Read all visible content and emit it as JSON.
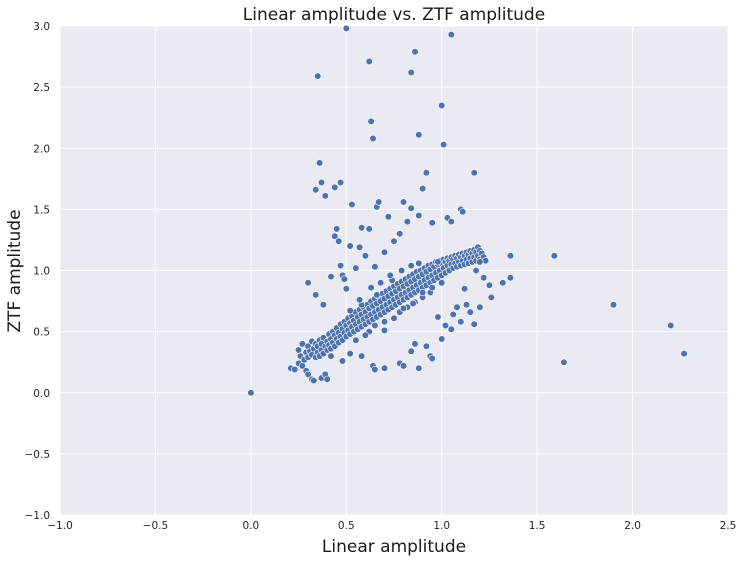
{
  "colors": {
    "plot_background": "#eaeaf2",
    "grid": "#ffffff",
    "marker": "#4c72b0",
    "marker_edge": "#ffffff"
  },
  "chart_data": {
    "type": "scatter",
    "title": "Linear amplitude vs. ZTF amplitude",
    "xlabel": "Linear amplitude",
    "ylabel": "ZTF amplitude",
    "xlim": [
      -1.0,
      2.5
    ],
    "ylim": [
      -1.0,
      3.0
    ],
    "xticks": [
      "−1.0",
      "−0.5",
      "0.0",
      "0.5",
      "1.0",
      "1.5",
      "2.0",
      "2.5"
    ],
    "yticks": [
      "−1.0",
      "−0.5",
      "0.0",
      "0.5",
      "1.0",
      "1.5",
      "2.0",
      "2.5",
      "3.0"
    ],
    "grid": true,
    "legend": "none",
    "series": [
      {
        "points": [
          [
            0.0,
            0.0
          ],
          [
            0.21,
            0.2
          ],
          [
            0.23,
            0.19
          ],
          [
            0.25,
            0.24
          ],
          [
            0.27,
            0.22
          ],
          [
            0.29,
            0.18
          ],
          [
            0.3,
            0.15
          ],
          [
            0.32,
            0.11
          ],
          [
            0.33,
            0.1
          ],
          [
            0.37,
            0.12
          ],
          [
            0.39,
            0.15
          ],
          [
            0.4,
            0.11
          ],
          [
            0.25,
            0.35
          ],
          [
            0.26,
            0.3
          ],
          [
            0.27,
            0.4
          ],
          [
            0.28,
            0.27
          ],
          [
            0.29,
            0.33
          ],
          [
            0.3,
            0.38
          ],
          [
            0.3,
            0.29
          ],
          [
            0.31,
            0.34
          ],
          [
            0.32,
            0.42
          ],
          [
            0.32,
            0.31
          ],
          [
            0.33,
            0.36
          ],
          [
            0.34,
            0.29
          ],
          [
            0.34,
            0.4
          ],
          [
            0.35,
            0.33
          ],
          [
            0.35,
            0.38
          ],
          [
            0.36,
            0.3
          ],
          [
            0.36,
            0.43
          ],
          [
            0.37,
            0.35
          ],
          [
            0.37,
            0.4
          ],
          [
            0.38,
            0.32
          ],
          [
            0.38,
            0.45
          ],
          [
            0.39,
            0.38
          ],
          [
            0.4,
            0.42
          ],
          [
            0.4,
            0.35
          ],
          [
            0.41,
            0.48
          ],
          [
            0.41,
            0.39
          ],
          [
            0.42,
            0.44
          ],
          [
            0.42,
            0.36
          ],
          [
            0.43,
            0.5
          ],
          [
            0.43,
            0.41
          ],
          [
            0.44,
            0.47
          ],
          [
            0.44,
            0.38
          ],
          [
            0.45,
            0.53
          ],
          [
            0.45,
            0.44
          ],
          [
            0.46,
            0.49
          ],
          [
            0.46,
            0.41
          ],
          [
            0.47,
            0.56
          ],
          [
            0.47,
            0.46
          ],
          [
            0.48,
            0.52
          ],
          [
            0.48,
            0.43
          ],
          [
            0.49,
            0.58
          ],
          [
            0.49,
            0.49
          ],
          [
            0.5,
            0.55
          ],
          [
            0.5,
            0.46
          ],
          [
            0.51,
            0.61
          ],
          [
            0.51,
            0.51
          ],
          [
            0.52,
            0.57
          ],
          [
            0.52,
            0.48
          ],
          [
            0.53,
            0.63
          ],
          [
            0.53,
            0.54
          ],
          [
            0.54,
            0.59
          ],
          [
            0.54,
            0.5
          ],
          [
            0.55,
            0.66
          ],
          [
            0.55,
            0.56
          ],
          [
            0.56,
            0.62
          ],
          [
            0.56,
            0.52
          ],
          [
            0.57,
            0.68
          ],
          [
            0.57,
            0.58
          ],
          [
            0.58,
            0.64
          ],
          [
            0.58,
            0.54
          ],
          [
            0.59,
            0.7
          ],
          [
            0.59,
            0.6
          ],
          [
            0.6,
            0.66
          ],
          [
            0.6,
            0.56
          ],
          [
            0.61,
            0.72
          ],
          [
            0.61,
            0.62
          ],
          [
            0.62,
            0.69
          ],
          [
            0.62,
            0.58
          ],
          [
            0.63,
            0.75
          ],
          [
            0.63,
            0.64
          ],
          [
            0.64,
            0.71
          ],
          [
            0.64,
            0.6
          ],
          [
            0.65,
            0.77
          ],
          [
            0.65,
            0.66
          ],
          [
            0.66,
            0.73
          ],
          [
            0.66,
            0.62
          ],
          [
            0.67,
            0.79
          ],
          [
            0.67,
            0.68
          ],
          [
            0.68,
            0.75
          ],
          [
            0.68,
            0.64
          ],
          [
            0.69,
            0.81
          ],
          [
            0.69,
            0.7
          ],
          [
            0.7,
            0.77
          ],
          [
            0.7,
            0.66
          ],
          [
            0.71,
            0.83
          ],
          [
            0.71,
            0.72
          ],
          [
            0.72,
            0.79
          ],
          [
            0.72,
            0.68
          ],
          [
            0.73,
            0.85
          ],
          [
            0.73,
            0.74
          ],
          [
            0.74,
            0.81
          ],
          [
            0.74,
            0.7
          ],
          [
            0.75,
            0.87
          ],
          [
            0.75,
            0.76
          ],
          [
            0.76,
            0.83
          ],
          [
            0.76,
            0.72
          ],
          [
            0.77,
            0.89
          ],
          [
            0.77,
            0.78
          ],
          [
            0.78,
            0.85
          ],
          [
            0.78,
            0.74
          ],
          [
            0.79,
            0.91
          ],
          [
            0.79,
            0.8
          ],
          [
            0.8,
            0.87
          ],
          [
            0.8,
            0.76
          ],
          [
            0.81,
            0.93
          ],
          [
            0.81,
            0.82
          ],
          [
            0.82,
            0.89
          ],
          [
            0.82,
            0.78
          ],
          [
            0.83,
            0.95
          ],
          [
            0.83,
            0.84
          ],
          [
            0.84,
            0.91
          ],
          [
            0.84,
            0.8
          ],
          [
            0.85,
            0.97
          ],
          [
            0.85,
            0.86
          ],
          [
            0.86,
            0.93
          ],
          [
            0.86,
            0.82
          ],
          [
            0.87,
            0.99
          ],
          [
            0.87,
            0.88
          ],
          [
            0.88,
            0.95
          ],
          [
            0.88,
            0.84
          ],
          [
            0.89,
            1.0
          ],
          [
            0.89,
            0.9
          ],
          [
            0.9,
            0.97
          ],
          [
            0.9,
            0.86
          ],
          [
            0.91,
            1.02
          ],
          [
            0.91,
            0.92
          ],
          [
            0.92,
            0.99
          ],
          [
            0.92,
            0.88
          ],
          [
            0.93,
            1.04
          ],
          [
            0.93,
            0.94
          ],
          [
            0.94,
            1.01
          ],
          [
            0.94,
            0.9
          ],
          [
            0.95,
            1.05
          ],
          [
            0.95,
            0.96
          ],
          [
            0.96,
            1.03
          ],
          [
            0.96,
            0.92
          ],
          [
            0.97,
            1.07
          ],
          [
            0.97,
            0.98
          ],
          [
            0.98,
            1.05
          ],
          [
            0.98,
            0.94
          ],
          [
            0.99,
            1.08
          ],
          [
            0.99,
            1.0
          ],
          [
            1.0,
            1.06
          ],
          [
            1.0,
            0.96
          ],
          [
            1.01,
            1.09
          ],
          [
            1.01,
            1.02
          ],
          [
            1.02,
            1.07
          ],
          [
            1.02,
            0.98
          ],
          [
            1.03,
            1.1
          ],
          [
            1.03,
            1.04
          ],
          [
            1.04,
            1.08
          ],
          [
            1.04,
            1.0
          ],
          [
            1.05,
            1.11
          ],
          [
            1.05,
            1.05
          ],
          [
            1.06,
            1.09
          ],
          [
            1.06,
            1.02
          ],
          [
            1.07,
            1.12
          ],
          [
            1.07,
            1.06
          ],
          [
            1.08,
            1.1
          ],
          [
            1.08,
            1.03
          ],
          [
            1.09,
            1.13
          ],
          [
            1.09,
            1.07
          ],
          [
            1.1,
            1.11
          ],
          [
            1.1,
            1.04
          ],
          [
            1.11,
            1.14
          ],
          [
            1.11,
            1.08
          ],
          [
            1.12,
            1.12
          ],
          [
            1.12,
            1.05
          ],
          [
            1.13,
            1.15
          ],
          [
            1.13,
            1.09
          ],
          [
            1.14,
            1.13
          ],
          [
            1.14,
            1.06
          ],
          [
            1.15,
            1.16
          ],
          [
            1.15,
            1.1
          ],
          [
            1.16,
            1.14
          ],
          [
            1.16,
            1.07
          ],
          [
            1.17,
            1.17
          ],
          [
            1.17,
            1.11
          ],
          [
            1.18,
            1.15
          ],
          [
            1.18,
            1.08
          ],
          [
            1.19,
            1.19
          ],
          [
            1.19,
            1.12
          ],
          [
            1.2,
            1.16
          ],
          [
            1.2,
            1.09
          ],
          [
            1.21,
            1.14
          ],
          [
            1.22,
            1.11
          ],
          [
            1.23,
            1.08
          ],
          [
            0.58,
            0.72
          ],
          [
            0.62,
            0.5
          ],
          [
            0.66,
            0.8
          ],
          [
            0.7,
            0.58
          ],
          [
            0.74,
            0.92
          ],
          [
            0.78,
            0.66
          ],
          [
            0.82,
            0.7
          ],
          [
            0.86,
            0.74
          ],
          [
            0.9,
            0.78
          ],
          [
            0.94,
            0.82
          ],
          [
            0.55,
            0.43
          ],
          [
            0.6,
            0.47
          ],
          [
            0.65,
            0.55
          ],
          [
            0.7,
            0.51
          ],
          [
            0.75,
            0.61
          ],
          [
            0.8,
            0.69
          ],
          [
            0.85,
            0.73
          ],
          [
            0.9,
            0.82
          ],
          [
            0.95,
            0.86
          ],
          [
            1.0,
            0.9
          ],
          [
            0.52,
            0.67
          ],
          [
            0.57,
            0.76
          ],
          [
            0.63,
            0.86
          ],
          [
            0.68,
            0.9
          ],
          [
            0.73,
            0.96
          ],
          [
            0.79,
            1.0
          ],
          [
            0.84,
            1.04
          ],
          [
            0.88,
            1.06
          ],
          [
            0.3,
            0.9
          ],
          [
            0.34,
            0.8
          ],
          [
            0.38,
            0.72
          ],
          [
            0.42,
            0.95
          ],
          [
            0.44,
            1.28
          ],
          [
            0.45,
            1.34
          ],
          [
            0.46,
            1.24
          ],
          [
            0.47,
            1.04
          ],
          [
            0.48,
            0.96
          ],
          [
            0.49,
            0.93
          ],
          [
            0.5,
            0.85
          ],
          [
            0.52,
            1.2
          ],
          [
            0.55,
            1.02
          ],
          [
            0.57,
            1.19
          ],
          [
            0.58,
            1.35
          ],
          [
            0.6,
            1.12
          ],
          [
            0.62,
            1.34
          ],
          [
            0.65,
            1.03
          ],
          [
            0.66,
            1.52
          ],
          [
            0.67,
            1.56
          ],
          [
            0.7,
            1.15
          ],
          [
            0.72,
            1.44
          ],
          [
            0.75,
            1.24
          ],
          [
            0.78,
            1.3
          ],
          [
            0.8,
            1.56
          ],
          [
            0.82,
            1.4
          ],
          [
            0.84,
            1.51
          ],
          [
            0.88,
            1.45
          ],
          [
            0.9,
            1.67
          ],
          [
            0.92,
            1.8
          ],
          [
            0.95,
            1.39
          ],
          [
            0.98,
            1.07
          ],
          [
            1.03,
            1.43
          ],
          [
            1.05,
            1.4
          ],
          [
            1.1,
            1.5
          ],
          [
            1.11,
            1.48
          ],
          [
            1.17,
            1.8
          ],
          [
            0.34,
            1.66
          ],
          [
            0.36,
            1.88
          ],
          [
            0.37,
            1.72
          ],
          [
            0.39,
            1.61
          ],
          [
            0.44,
            1.68
          ],
          [
            0.47,
            1.72
          ],
          [
            0.53,
            1.54
          ],
          [
            0.35,
            2.59
          ],
          [
            0.5,
            2.98
          ],
          [
            0.62,
            2.71
          ],
          [
            0.63,
            2.22
          ],
          [
            0.64,
            2.08
          ],
          [
            0.84,
            2.62
          ],
          [
            0.86,
            2.79
          ],
          [
            0.88,
            2.11
          ],
          [
            1.0,
            2.35
          ],
          [
            1.01,
            2.03
          ],
          [
            1.05,
            2.93
          ],
          [
            0.42,
            0.3
          ],
          [
            0.48,
            0.26
          ],
          [
            0.52,
            0.32
          ],
          [
            0.58,
            0.3
          ],
          [
            0.64,
            0.22
          ],
          [
            0.65,
            0.19
          ],
          [
            0.7,
            0.2
          ],
          [
            0.78,
            0.24
          ],
          [
            0.8,
            0.22
          ],
          [
            0.84,
            0.34
          ],
          [
            0.88,
            0.2
          ],
          [
            0.94,
            0.3
          ],
          [
            0.95,
            0.28
          ],
          [
            0.92,
            0.38
          ],
          [
            0.86,
            0.4
          ],
          [
            1.0,
            0.44
          ],
          [
            1.05,
            0.52
          ],
          [
            1.08,
            0.7
          ],
          [
            1.1,
            0.58
          ],
          [
            1.13,
            0.72
          ],
          [
            1.15,
            0.66
          ],
          [
            1.17,
            0.56
          ],
          [
            1.2,
            0.7
          ],
          [
            1.22,
            0.94
          ],
          [
            1.25,
            0.88
          ],
          [
            1.26,
            0.78
          ],
          [
            1.32,
            0.9
          ],
          [
            1.36,
            0.94
          ],
          [
            1.36,
            1.12
          ],
          [
            1.02,
            0.55
          ],
          [
            1.06,
            0.64
          ],
          [
            1.12,
            0.85
          ],
          [
            1.18,
            1.0
          ],
          [
            1.2,
            1.07
          ],
          [
            0.98,
            0.62
          ],
          [
            1.59,
            1.12
          ],
          [
            1.64,
            0.25
          ],
          [
            1.9,
            0.72
          ],
          [
            2.2,
            0.55
          ],
          [
            2.27,
            0.32
          ]
        ]
      }
    ]
  }
}
